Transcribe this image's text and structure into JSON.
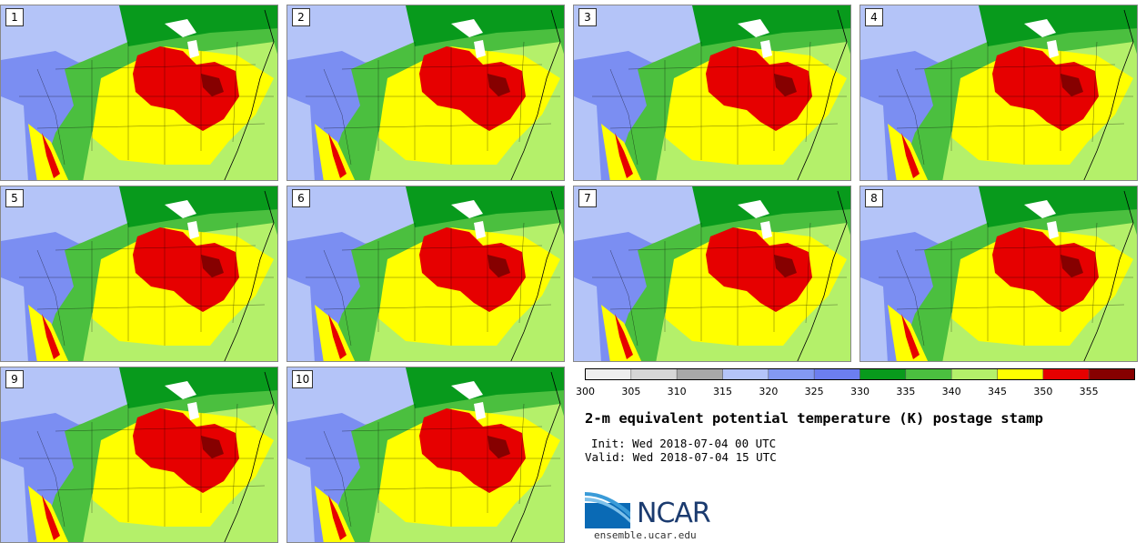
{
  "panels": [
    {
      "label": "1"
    },
    {
      "label": "2"
    },
    {
      "label": "3"
    },
    {
      "label": "4"
    },
    {
      "label": "5"
    },
    {
      "label": "6"
    },
    {
      "label": "7"
    },
    {
      "label": "8"
    },
    {
      "label": "9"
    },
    {
      "label": "10"
    }
  ],
  "colorbar": {
    "ticks": [
      "300",
      "305",
      "310",
      "315",
      "320",
      "325",
      "330",
      "335",
      "340",
      "345",
      "350",
      "355"
    ],
    "colors": [
      "#eeeeee",
      "#d6d6d6",
      "#a8a8a8",
      "#b4c4f8",
      "#8399f2",
      "#6c7ef0",
      "#089a1c",
      "#4bbf3f",
      "#b4f06a",
      "#ffff00",
      "#e60000",
      "#860000"
    ]
  },
  "map_colors": {
    "background_gray": "#a8a8a8",
    "light_gray": "#d6d6d6",
    "light_blue": "#b4c4f8",
    "blue": "#7b8ef2",
    "dark_green": "#089a1c",
    "green": "#4bbf3f",
    "light_green": "#b4f06a",
    "yellow": "#ffff00",
    "red": "#e60000",
    "dark_red": "#860000",
    "snow": "#ffffff"
  },
  "title": "2-m equivalent potential temperature (K) postage stamp",
  "init": "Init: Wed 2018-07-04 00 UTC",
  "valid": "Valid: Wed 2018-07-04 15 UTC",
  "logo": {
    "text": "NCAR",
    "url": "ensemble.ucar.edu"
  }
}
